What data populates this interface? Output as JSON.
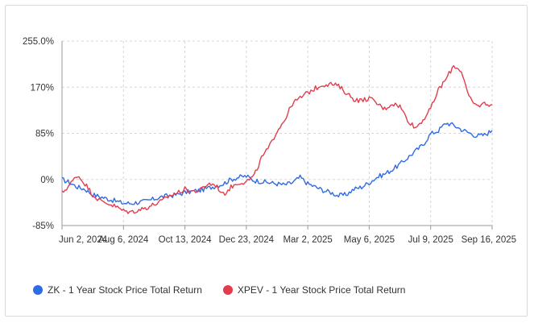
{
  "chart_data": {
    "type": "line",
    "title": "",
    "xlabel": "",
    "ylabel": "",
    "y_ticks": [
      "255.0%",
      "170%",
      "85%",
      "0%",
      "-85%"
    ],
    "y_tick_values": [
      255,
      170,
      85,
      0,
      -85
    ],
    "ylim": [
      -85,
      255
    ],
    "x_ticks": [
      "Jun 2, 2024",
      "Aug 6, 2024",
      "Oct 13, 2024",
      "Dec 23, 2024",
      "Mar 2, 2025",
      "May 6, 2025",
      "Jul 9, 2025",
      "Sep 16, 2025"
    ],
    "grid": true,
    "legend_position": "bottom-left",
    "series": [
      {
        "name": "ZK - 1 Year Stock Price Total Return",
        "color": "#2f6be3",
        "values": [
          0,
          -6,
          -14,
          -18,
          -28,
          -32,
          -36,
          -40,
          -44,
          -44,
          -42,
          -40,
          -36,
          -32,
          -30,
          -28,
          -24,
          -22,
          -20,
          -16,
          -12,
          -8,
          0,
          4,
          6,
          -2,
          -4,
          -6,
          -8,
          -10,
          -6,
          4,
          -8,
          -14,
          -20,
          -24,
          -30,
          -28,
          -18,
          -14,
          -6,
          4,
          10,
          18,
          28,
          40,
          52,
          64,
          84,
          90,
          104,
          100,
          92,
          86,
          80,
          82,
          90
        ]
      },
      {
        "name": "XPEV - 1 Year Stock Price Total Return",
        "color": "#e33d4d",
        "values": [
          -25,
          -10,
          8,
          -8,
          -28,
          -40,
          -44,
          -50,
          -58,
          -60,
          -56,
          -52,
          -46,
          -40,
          -30,
          -25,
          -18,
          -22,
          -20,
          -8,
          -10,
          -28,
          -14,
          -6,
          -4,
          6,
          40,
          60,
          90,
          110,
          140,
          150,
          160,
          168,
          175,
          176,
          172,
          160,
          148,
          145,
          150,
          140,
          130,
          140,
          135,
          110,
          95,
          110,
          130,
          165,
          185,
          210,
          200,
          150,
          135,
          140,
          138
        ]
      }
    ]
  }
}
